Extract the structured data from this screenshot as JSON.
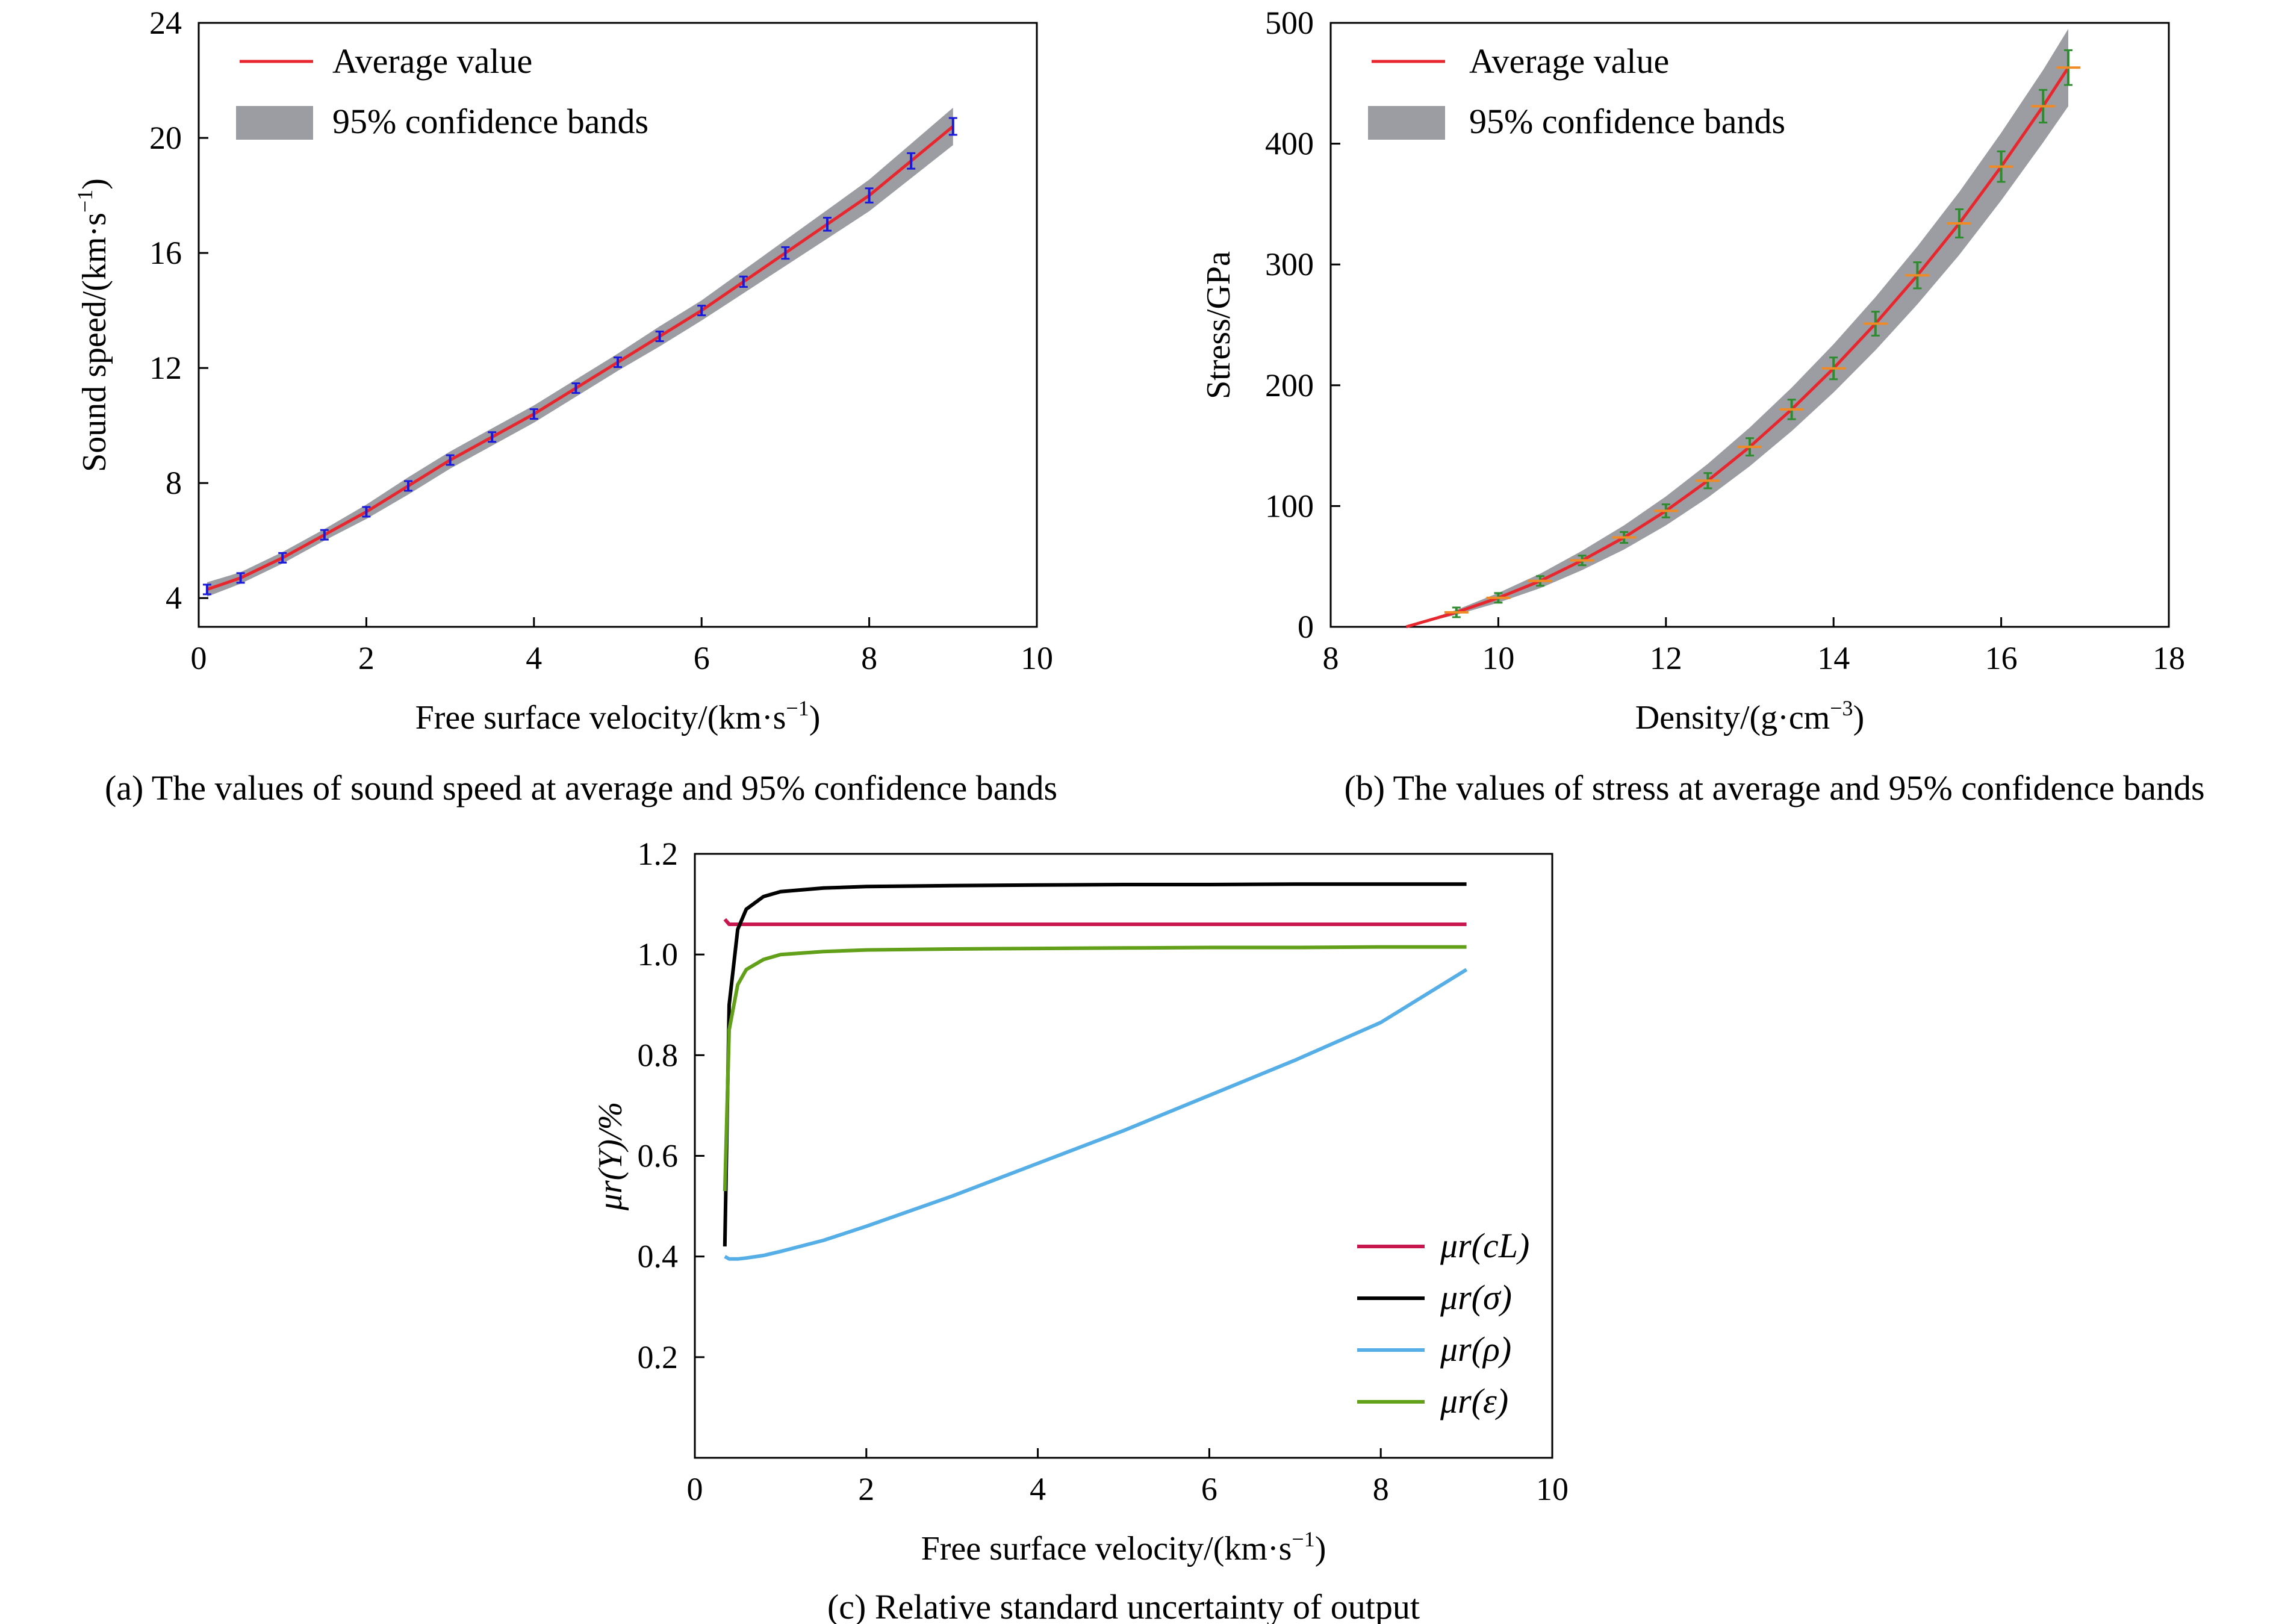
{
  "colors": {
    "average": "#e8262d",
    "band": "#9b9da3",
    "errorbar_a": "#1a1adc",
    "errorbar_b_x": "#f08a24",
    "errorbar_b_y": "#2e8b2e",
    "mu_cl": "#c8174f",
    "mu_sigma": "#000000",
    "mu_rho": "#56aee6",
    "mu_eps": "#62a01a"
  },
  "chart_data": [
    {
      "id": "a",
      "type": "line",
      "caption": "(a) The values of sound speed at average and 95% confidence bands",
      "xlabel": "Free surface velocity/(km·s",
      "xlabel_sup": "−1",
      "xlabel_end": ")",
      "ylabel": "Sound speed/(km·s",
      "ylabel_sup": "−1",
      "ylabel_end": ")",
      "xlim": [
        0,
        10
      ],
      "ylim": [
        3,
        24
      ],
      "xticks": [
        "0",
        "2",
        "4",
        "6",
        "8",
        "10"
      ],
      "yticks": [
        "4",
        "8",
        "12",
        "16",
        "20",
        "24"
      ],
      "legend": [
        "Average value",
        "95% confidence bands"
      ],
      "x": [
        0.1,
        0.5,
        1.0,
        1.5,
        2.0,
        2.5,
        3.0,
        3.5,
        4.0,
        4.5,
        5.0,
        5.5,
        6.0,
        6.5,
        7.0,
        7.5,
        8.0,
        8.5,
        9.0
      ],
      "average": [
        4.3,
        4.7,
        5.4,
        6.2,
        7.0,
        7.9,
        8.8,
        9.6,
        10.4,
        11.3,
        12.2,
        13.1,
        14.0,
        15.0,
        16.0,
        17.0,
        18.0,
        19.2,
        20.4
      ],
      "band_halfwidth": [
        0.25,
        0.2,
        0.2,
        0.2,
        0.25,
        0.3,
        0.3,
        0.3,
        0.3,
        0.3,
        0.3,
        0.35,
        0.35,
        0.4,
        0.45,
        0.5,
        0.55,
        0.6,
        0.65
      ]
    },
    {
      "id": "b",
      "type": "line",
      "caption": "(b) The values of stress at average and 95% confidence bands",
      "xlabel": "Density/(g·cm",
      "xlabel_sup": "−3",
      "xlabel_end": ")",
      "ylabel": "Stress/GPa",
      "xlim": [
        8,
        18
      ],
      "ylim": [
        0,
        500
      ],
      "xticks": [
        "8",
        "10",
        "12",
        "14",
        "16",
        "18"
      ],
      "yticks": [
        "0",
        "100",
        "200",
        "300",
        "400",
        "500"
      ],
      "legend": [
        "Average value",
        "95% confidence bands"
      ],
      "x": [
        8.9,
        9.5,
        10.0,
        10.5,
        11.0,
        11.5,
        12.0,
        12.5,
        13.0,
        13.5,
        14.0,
        14.5,
        15.0,
        15.5,
        16.0,
        16.5,
        16.8
      ],
      "average": [
        0,
        12,
        24,
        38,
        55,
        74,
        96,
        121,
        149,
        180,
        214,
        251,
        291,
        334,
        381,
        431,
        463
      ],
      "band_halfwidth": [
        0,
        2,
        4,
        6,
        8,
        10,
        12,
        14,
        16,
        18,
        20,
        22,
        24,
        26,
        28,
        30,
        32
      ]
    },
    {
      "id": "c",
      "type": "line",
      "caption": "(c) Relative standard uncertainty of output",
      "xlabel": "Free surface velocity/(km·s",
      "xlabel_sup": "−1",
      "xlabel_end": ")",
      "ylabel": "μr(Y)/%",
      "xlim": [
        0,
        10
      ],
      "ylim": [
        0,
        1.2
      ],
      "xticks": [
        "0",
        "2",
        "4",
        "6",
        "8",
        "10"
      ],
      "yticks": [
        "0.2",
        "0.4",
        "0.6",
        "0.8",
        "1.0",
        "1.2"
      ],
      "x": [
        0.35,
        0.4,
        0.5,
        0.6,
        0.8,
        1.0,
        1.5,
        2.0,
        3.0,
        4.0,
        5.0,
        6.0,
        7.0,
        8.0,
        9.0
      ],
      "series": [
        {
          "name": "μr(cL)",
          "values": [
            1.07,
            1.06,
            1.06,
            1.06,
            1.06,
            1.06,
            1.06,
            1.06,
            1.06,
            1.06,
            1.06,
            1.06,
            1.06,
            1.06,
            1.06
          ]
        },
        {
          "name": "μr(σ)",
          "values": [
            0.42,
            0.9,
            1.05,
            1.09,
            1.115,
            1.125,
            1.132,
            1.135,
            1.137,
            1.138,
            1.139,
            1.139,
            1.14,
            1.14,
            1.14
          ]
        },
        {
          "name": "μr(ρ)",
          "values": [
            0.4,
            0.395,
            0.395,
            0.397,
            0.402,
            0.41,
            0.432,
            0.46,
            0.52,
            0.585,
            0.65,
            0.72,
            0.79,
            0.865,
            0.97
          ]
        },
        {
          "name": "μr(ε)",
          "values": [
            0.53,
            0.85,
            0.94,
            0.97,
            0.99,
            1.0,
            1.006,
            1.009,
            1.011,
            1.012,
            1.013,
            1.014,
            1.014,
            1.015,
            1.015
          ]
        }
      ],
      "legend": [
        "μr(cL)",
        "μr(σ)",
        "μr(ρ)",
        "μr(ε)"
      ]
    }
  ]
}
